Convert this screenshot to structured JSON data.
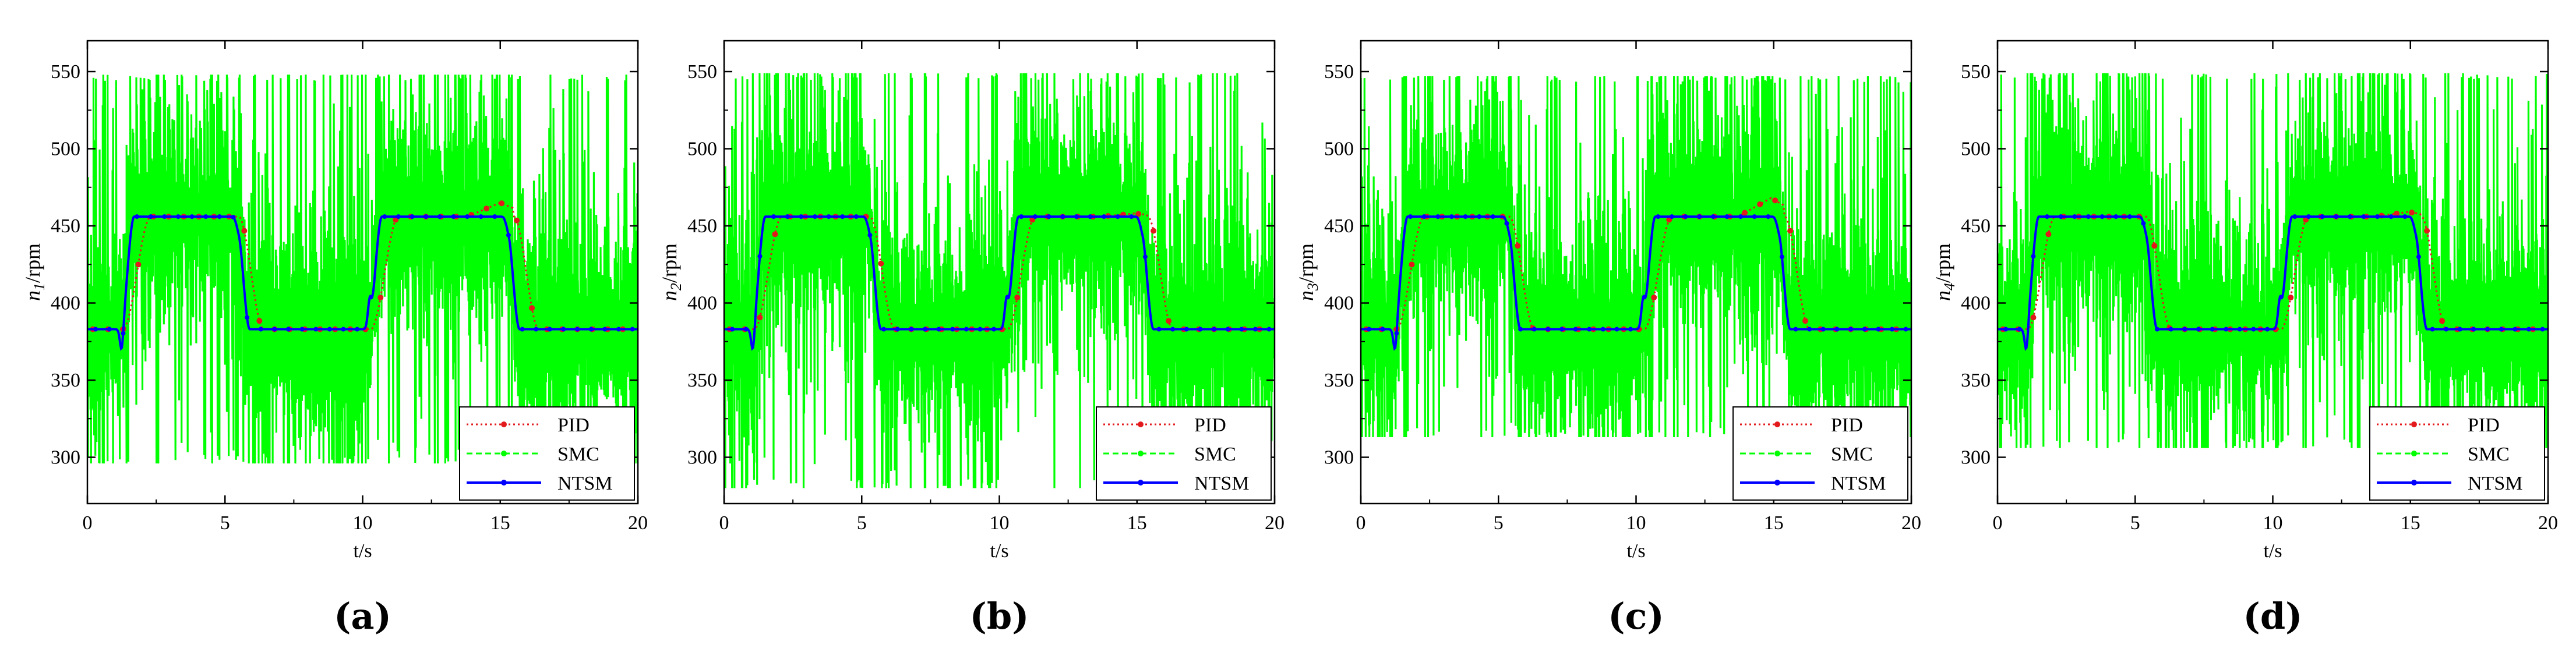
{
  "figure": {
    "panel_count": 4
  },
  "chart_data": [
    {
      "panel_label": "a",
      "type": "line",
      "xlabel": "t/s",
      "ylabel_sym": "n",
      "ylabel_sub": "1",
      "ylabel_unit": "/rpm",
      "xlim": [
        0,
        20
      ],
      "ylim": [
        270,
        570
      ],
      "xticks": [
        0,
        5,
        10,
        15,
        20
      ],
      "yticks": [
        300,
        350,
        400,
        450,
        500,
        550
      ],
      "legend": [
        "PID",
        "SMC",
        "NTSM"
      ],
      "legend_position": "bottom-right",
      "low": 383,
      "high": 456,
      "steps": [
        [
          1.2,
          5.4
        ],
        [
          10.2,
          15.2
        ]
      ],
      "seed": 11,
      "smc_lo": 296,
      "smc_hi": 548,
      "pid_overshoot": 465
    },
    {
      "panel_label": "b",
      "type": "line",
      "xlabel": "t/s",
      "ylabel_sym": "n",
      "ylabel_sub": "2",
      "ylabel_unit": "/rpm",
      "xlim": [
        0,
        20
      ],
      "ylim": [
        270,
        570
      ],
      "xticks": [
        0,
        5,
        10,
        15,
        20
      ],
      "yticks": [
        300,
        350,
        400,
        450,
        500,
        550
      ],
      "legend": [
        "PID",
        "SMC",
        "NTSM"
      ],
      "legend_position": "bottom-right",
      "low": 383,
      "high": 456,
      "steps": [
        [
          1.0,
          5.2
        ],
        [
          10.2,
          15.1
        ]
      ],
      "seed": 23,
      "smc_lo": 280,
      "smc_hi": 549,
      "pid_overshoot": 458
    },
    {
      "panel_label": "c",
      "type": "line",
      "xlabel": "t/s",
      "ylabel_sym": "n",
      "ylabel_sub": "3",
      "ylabel_unit": "/rpm",
      "xlim": [
        0,
        20
      ],
      "ylim": [
        270,
        570
      ],
      "xticks": [
        0,
        5,
        10,
        15,
        20
      ],
      "yticks": [
        300,
        350,
        400,
        450,
        500,
        550
      ],
      "legend": [
        "PID",
        "SMC",
        "NTSM"
      ],
      "legend_position": "bottom-right",
      "low": 383,
      "high": 456,
      "steps": [
        [
          1.2,
          5.3
        ],
        [
          10.2,
          15.1
        ]
      ],
      "seed": 37,
      "smc_lo": 313,
      "smc_hi": 547,
      "pid_overshoot": 468
    },
    {
      "panel_label": "d",
      "type": "line",
      "xlabel": "t/s",
      "ylabel_sym": "n",
      "ylabel_sub": "4",
      "ylabel_unit": "/rpm",
      "xlim": [
        0,
        20
      ],
      "ylim": [
        270,
        570
      ],
      "xticks": [
        0,
        5,
        10,
        15,
        20
      ],
      "yticks": [
        300,
        350,
        400,
        450,
        500,
        550
      ],
      "legend": [
        "PID",
        "SMC",
        "NTSM"
      ],
      "legend_position": "bottom-right",
      "low": 383,
      "high": 456,
      "steps": [
        [
          1.0,
          5.3
        ],
        [
          10.2,
          15.1
        ]
      ],
      "seed": 53,
      "smc_lo": 306,
      "smc_hi": 549,
      "pid_overshoot": 459
    }
  ],
  "colors": {
    "pid": "#e31a1c",
    "smc": "#00ff00",
    "ntsm": "#0000ff",
    "axis": "#000000"
  }
}
